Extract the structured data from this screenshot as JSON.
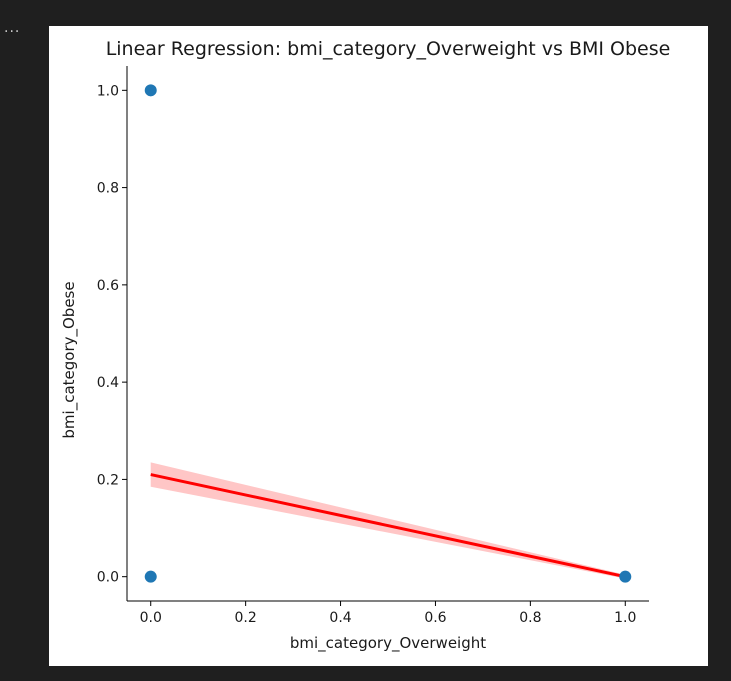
{
  "cell": {
    "menu_label": "..."
  },
  "chart_data": {
    "type": "scatter",
    "title": "Linear Regression: bmi_category_Overweight vs BMI Obese",
    "xlabel": "bmi_category_Overweight",
    "ylabel": "bmi_category_Obese",
    "xlim": [
      -0.05,
      1.05
    ],
    "ylim": [
      -0.05,
      1.05
    ],
    "xticks": [
      0.0,
      0.2,
      0.4,
      0.6,
      0.8,
      1.0
    ],
    "yticks": [
      0.0,
      0.2,
      0.4,
      0.6,
      0.8,
      1.0
    ],
    "xtick_labels": [
      "0.0",
      "0.2",
      "0.4",
      "0.6",
      "0.8",
      "1.0"
    ],
    "ytick_labels": [
      "0.0",
      "0.2",
      "0.4",
      "0.6",
      "0.8",
      "1.0"
    ],
    "points": [
      {
        "x": 0.0,
        "y": 1.0
      },
      {
        "x": 0.0,
        "y": 0.0
      },
      {
        "x": 1.0,
        "y": 0.0
      }
    ],
    "regression": {
      "x": [
        0.0,
        1.0
      ],
      "y": [
        0.21,
        0.0
      ],
      "ci_upper": [
        0.235,
        0.004
      ],
      "ci_lower": [
        0.185,
        -0.004
      ]
    },
    "colors": {
      "points": "#1f77b4",
      "line": "#ff0000",
      "band": "#ffb3b3"
    },
    "grid": false,
    "spines": "left-bottom"
  }
}
